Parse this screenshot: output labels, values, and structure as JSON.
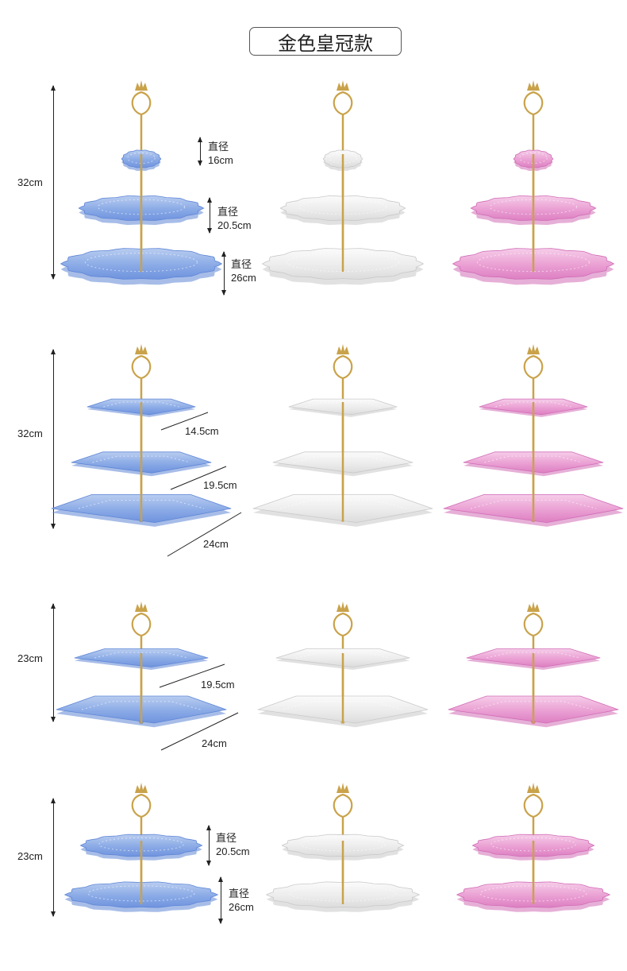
{
  "title": "金色皇冠款",
  "rows": [
    {
      "kind": "round3",
      "height_label": "32cm",
      "dims": [
        {
          "label": "直径",
          "value": "16cm"
        },
        {
          "label": "直径",
          "value": "20.5cm"
        },
        {
          "label": "直径",
          "value": "26cm"
        }
      ]
    },
    {
      "kind": "square3",
      "height_label": "32cm",
      "dims": [
        {
          "value": "14.5cm"
        },
        {
          "value": "19.5cm"
        },
        {
          "value": "24cm"
        }
      ]
    },
    {
      "kind": "square2",
      "height_label": "23cm",
      "dims": [
        {
          "value": "19.5cm"
        },
        {
          "value": "24cm"
        }
      ]
    },
    {
      "kind": "round2",
      "height_label": "23cm",
      "dims": [
        {
          "label": "直径",
          "value": "20.5cm"
        },
        {
          "label": "直径",
          "value": "26cm"
        }
      ]
    }
  ],
  "colors": [
    {
      "name": "blue",
      "light": "#b9cdf0",
      "mid": "#8aaae6",
      "dark": "#6f93de",
      "edge": "#5f86d6"
    },
    {
      "name": "white",
      "light": "#fbfbfb",
      "mid": "#ececec",
      "dark": "#dcdcdc",
      "edge": "#c9c9c9"
    },
    {
      "name": "pink",
      "light": "#f6cde9",
      "mid": "#ea9fd3",
      "dark": "#dd7fc2",
      "edge": "#d16db7"
    }
  ],
  "gold": "#c9a24a"
}
